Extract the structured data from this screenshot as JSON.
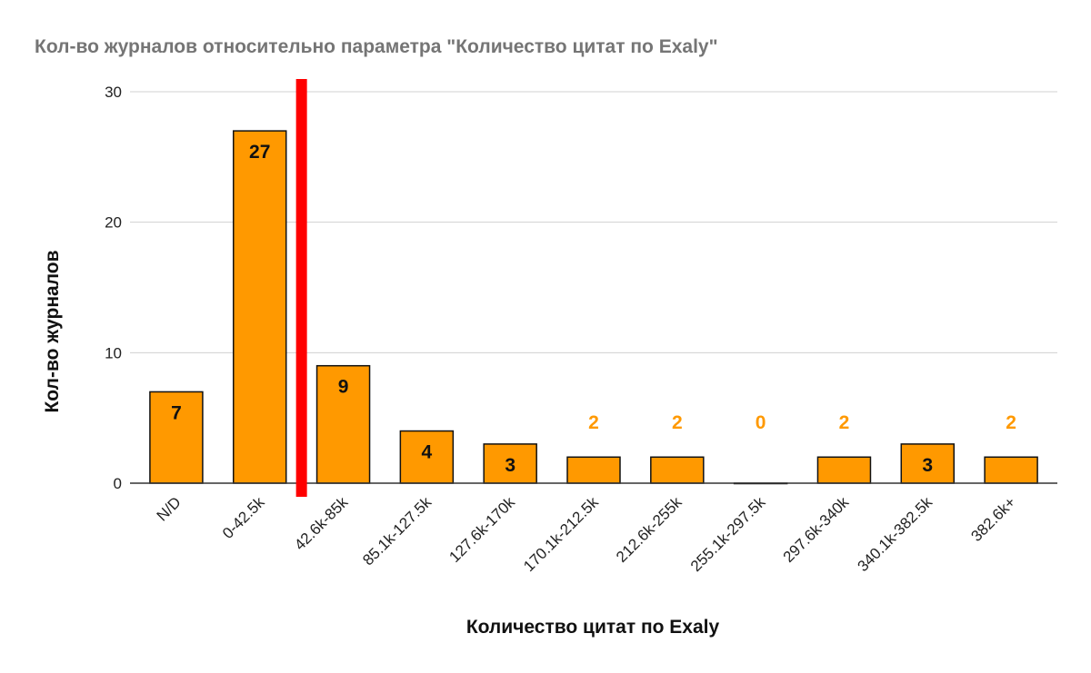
{
  "chart_data": {
    "type": "bar",
    "title": "Кол-во журналов относительно параметра \"Количество цитат по Exaly\"",
    "xlabel": "Количество цитат по Exaly",
    "ylabel": "Кол-во журналов",
    "categories": [
      "N/D",
      "0-42.5k",
      "42.6k-85k",
      "85.1k-127.5k",
      "127.6k-170k",
      "170.1k-212.5k",
      "212.6k-255k",
      "255.1k-297.5k",
      "297.6k-340k",
      "340.1k-382.5k",
      "382.6k+"
    ],
    "values": [
      7,
      27,
      9,
      4,
      3,
      2,
      2,
      0,
      2,
      3,
      2
    ],
    "data_labels": [
      "7",
      "27",
      "9",
      "4",
      "3",
      "2",
      "2",
      "0",
      "2",
      "3",
      "2"
    ],
    "yticks": [
      "0",
      "10",
      "20",
      "30"
    ],
    "ylim": [
      0,
      30
    ],
    "grid": true,
    "legend": "none",
    "colors": {
      "bar": "#FF9900",
      "bar_outline": "#111111",
      "marker": "#FF0000",
      "label_outside": "#FF9900",
      "title": "#757575"
    },
    "annotations": [
      {
        "type": "vertical-marker",
        "color": "#FF0000",
        "between_categories": [
          "0-42.5k",
          "42.6k-85k"
        ]
      }
    ]
  }
}
